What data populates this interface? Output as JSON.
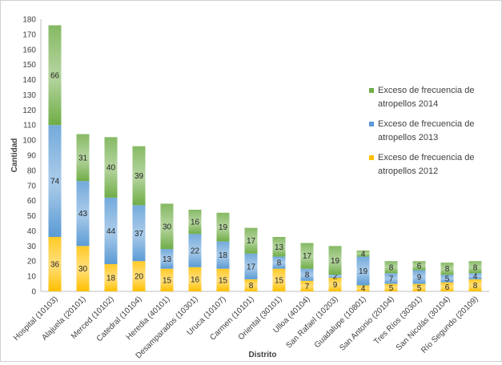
{
  "chart_data": {
    "type": "bar",
    "stacked": true,
    "title": "",
    "xlabel": "Distrito",
    "ylabel": "Cantidad",
    "ylim": [
      0,
      180
    ],
    "ytick_step": 10,
    "categories": [
      "Hospital (10103)",
      "Alajuela (20101)",
      "Merced (10102)",
      "Catedral (10104)",
      "Heredia (40101)",
      "Desamparados (10301)",
      "Uruca (10107)",
      "Carmen (10101)",
      "Oriental (30101)",
      "Ulloa (40104)",
      "San Rafael (10203)",
      "Guadalupe (10801)",
      "San Antonio (20104)",
      "Tres Ríos (30301)",
      "San Nicolás (30104)",
      "Río Segundo (20109)"
    ],
    "series": [
      {
        "name": "Exceso de frecuencia de atropellos 2012",
        "color": "#FFC000",
        "values": [
          36,
          30,
          18,
          20,
          15,
          16,
          15,
          8,
          15,
          7,
          9,
          4,
          5,
          5,
          6,
          8
        ]
      },
      {
        "name": "Exceso de frecuencia de atropellos 2013",
        "color": "#5B9BD5",
        "values": [
          74,
          43,
          44,
          37,
          13,
          22,
          18,
          17,
          8,
          8,
          2,
          19,
          7,
          9,
          5,
          4
        ]
      },
      {
        "name": "Exceso de frecuencia de atropellos 2014",
        "color": "#70AD47",
        "values": [
          66,
          31,
          40,
          39,
          30,
          16,
          19,
          17,
          13,
          17,
          19,
          4,
          8,
          6,
          8,
          8
        ]
      }
    ],
    "legend_position": "right",
    "grid": false
  }
}
